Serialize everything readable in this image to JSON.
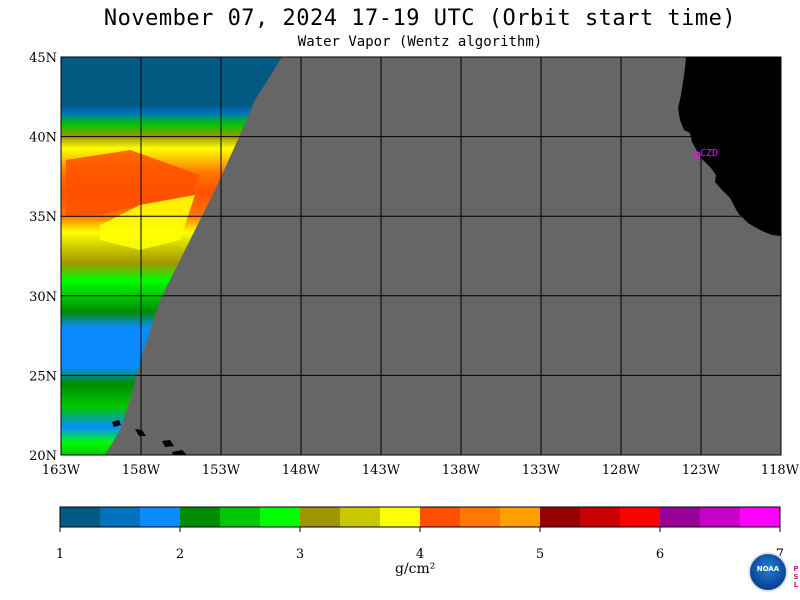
{
  "header": {
    "title": "November 07, 2024  17-19 UTC  (Orbit start time)",
    "subtitle": "Water Vapor (Wentz algorithm)"
  },
  "map": {
    "lat_labels": [
      "45N",
      "40N",
      "35N",
      "30N",
      "25N",
      "20N"
    ],
    "lon_labels": [
      "163W",
      "158W",
      "153W",
      "148W",
      "143W",
      "138W",
      "133W",
      "128W",
      "123W",
      "118W"
    ],
    "station_label": "CZD",
    "colors": {
      "no_data": "#666666",
      "land": "#000000",
      "grid": "#000000",
      "station": "#ff00ff"
    }
  },
  "colorbar": {
    "tick_labels": [
      "1",
      "2",
      "3",
      "4",
      "5",
      "6",
      "7"
    ],
    "units_label": "g/cm²",
    "colors": [
      "#005a82",
      "#0072c0",
      "#0a8cff",
      "#008c00",
      "#00c800",
      "#00ff00",
      "#a09600",
      "#c8c800",
      "#ffff00",
      "#ff5000",
      "#ff7800",
      "#ffa000",
      "#960000",
      "#c80000",
      "#ff0000",
      "#960096",
      "#c800c8",
      "#ff00ff"
    ]
  },
  "logo": {
    "text": "NOAA",
    "side_text": "PSL"
  }
}
